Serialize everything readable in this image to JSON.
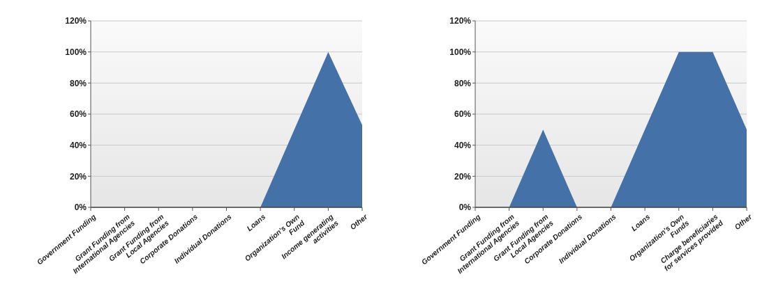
{
  "chart_data": [
    {
      "type": "area",
      "categories": [
        "Government Funding",
        "Grant Funding from International Agencies",
        "Grant Funding from Local Agencies",
        "Corporate Donations",
        "Individual Donations",
        "Loans",
        "Organization's Own Fund",
        "Income generating activities",
        "Other"
      ],
      "values": [
        0,
        0,
        0,
        0,
        0,
        0,
        50,
        100,
        53
      ],
      "color": "#4471a7",
      "ylim": [
        0,
        120
      ],
      "yticks": [
        {
          "value": 0,
          "label": "0%"
        },
        {
          "value": 20,
          "label": "20%"
        },
        {
          "value": 40,
          "label": "40%"
        },
        {
          "value": 60,
          "label": "60%"
        },
        {
          "value": 80,
          "label": "80%"
        },
        {
          "value": 100,
          "label": "100%"
        },
        {
          "value": 120,
          "label": "120%"
        }
      ],
      "grid": "y"
    },
    {
      "type": "area",
      "categories": [
        "Government Funding",
        "Grant Funding from International Agencies",
        "Grant Funding from Local Agencies",
        "Corporate Donations",
        "Individual Donations",
        "Loans",
        "Organization's Own Funds",
        "Charge beneficiaries for services provided",
        "Other"
      ],
      "values": [
        0,
        0,
        50,
        0,
        0,
        50,
        100,
        100,
        50
      ],
      "color": "#4471a7",
      "ylim": [
        0,
        120
      ],
      "yticks": [
        {
          "value": 0,
          "label": "0%"
        },
        {
          "value": 20,
          "label": "20%"
        },
        {
          "value": 40,
          "label": "40%"
        },
        {
          "value": 60,
          "label": "60%"
        },
        {
          "value": 80,
          "label": "80%"
        },
        {
          "value": 100,
          "label": "100%"
        },
        {
          "value": 120,
          "label": "120%"
        }
      ],
      "grid": "y"
    }
  ]
}
